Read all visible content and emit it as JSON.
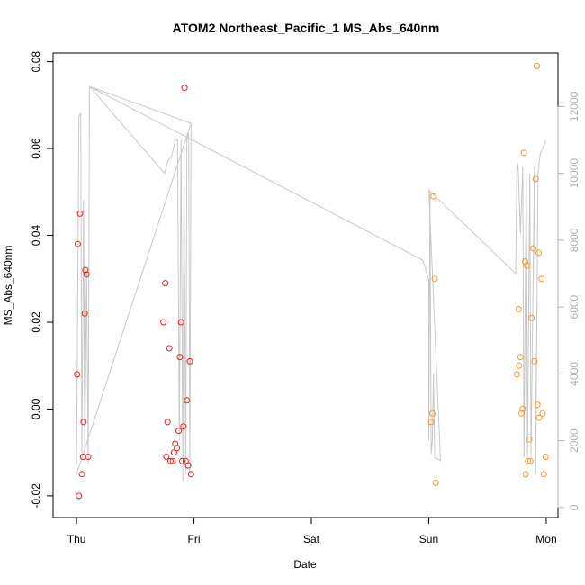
{
  "chart_data": {
    "type": "scatter",
    "title": "ATOM2 Northeast_Pacific_1 MS_Abs_640nm",
    "xlabel": "Date",
    "ylabel": "MS_Abs_640nm",
    "x_unit": "days since Thursday 00:00",
    "xlim": [
      -0.2,
      4.1
    ],
    "ylim": [
      -0.025,
      0.082
    ],
    "x_ticks": [
      {
        "value": 0,
        "label": "Thu"
      },
      {
        "value": 1,
        "label": "Fri"
      },
      {
        "value": 2,
        "label": "Sat"
      },
      {
        "value": 3,
        "label": "Sun"
      },
      {
        "value": 4,
        "label": "Mon"
      }
    ],
    "y_ticks": [
      {
        "value": -0.02,
        "label": "-0.02"
      },
      {
        "value": 0.0,
        "label": "0.00"
      },
      {
        "value": 0.02,
        "label": "0.02"
      },
      {
        "value": 0.04,
        "label": "0.04"
      },
      {
        "value": 0.06,
        "label": "0.06"
      },
      {
        "value": 0.08,
        "label": "0.08"
      }
    ],
    "y2lim": [
      -300,
      13600
    ],
    "y2_ticks": [
      {
        "value": 0,
        "label": "0"
      },
      {
        "value": 2000,
        "label": "2000"
      },
      {
        "value": 4000,
        "label": "4000"
      },
      {
        "value": 6000,
        "label": "6000"
      },
      {
        "value": 8000,
        "label": "8000"
      },
      {
        "value": 10000,
        "label": "10000"
      },
      {
        "value": 12000,
        "label": "12000"
      }
    ],
    "colors": {
      "red": "#ee1c1c",
      "orange": "#f5981f",
      "line": "#c8c8c8",
      "axis": "#000000",
      "axis2": "#b0b0b0"
    },
    "series": [
      {
        "color_key": "red",
        "points": [
          [
            0.005,
            0.008
          ],
          [
            0.01,
            0.038
          ],
          [
            0.02,
            -0.02
          ],
          [
            0.03,
            0.045
          ],
          [
            0.045,
            -0.015
          ],
          [
            0.055,
            -0.011
          ],
          [
            0.06,
            -0.003
          ],
          [
            0.07,
            0.022
          ],
          [
            0.075,
            0.032
          ],
          [
            0.085,
            0.031
          ],
          [
            0.1,
            -0.011
          ],
          [
            0.74,
            0.02
          ],
          [
            0.755,
            0.029
          ],
          [
            0.765,
            -0.011
          ],
          [
            0.775,
            -0.003
          ],
          [
            0.79,
            0.014
          ],
          [
            0.8,
            -0.012
          ],
          [
            0.82,
            -0.012
          ],
          [
            0.83,
            -0.01
          ],
          [
            0.84,
            -0.008
          ],
          [
            0.855,
            -0.009
          ],
          [
            0.87,
            -0.005
          ],
          [
            0.88,
            0.012
          ],
          [
            0.89,
            0.02
          ],
          [
            0.9,
            -0.012
          ],
          [
            0.91,
            -0.004
          ],
          [
            0.92,
            0.074
          ],
          [
            0.93,
            -0.012
          ],
          [
            0.94,
            0.002
          ],
          [
            0.95,
            -0.013
          ],
          [
            0.965,
            0.011
          ],
          [
            0.975,
            -0.015
          ]
        ]
      },
      {
        "color_key": "orange",
        "points": [
          [
            3.02,
            -0.003
          ],
          [
            3.03,
            -0.001
          ],
          [
            3.04,
            0.049
          ],
          [
            3.05,
            0.03
          ],
          [
            3.06,
            -0.017
          ],
          [
            3.75,
            0.008
          ],
          [
            3.765,
            0.023
          ],
          [
            3.77,
            0.01
          ],
          [
            3.78,
            0.012
          ],
          [
            3.79,
            -0.001
          ],
          [
            3.8,
            0.0
          ],
          [
            3.81,
            0.059
          ],
          [
            3.82,
            0.034
          ],
          [
            3.825,
            -0.015
          ],
          [
            3.835,
            0.033
          ],
          [
            3.845,
            -0.012
          ],
          [
            3.855,
            -0.007
          ],
          [
            3.865,
            -0.012
          ],
          [
            3.875,
            0.021
          ],
          [
            3.89,
            0.037
          ],
          [
            3.9,
            0.011
          ],
          [
            3.91,
            0.053
          ],
          [
            3.92,
            0.079
          ],
          [
            3.925,
            0.001
          ],
          [
            3.935,
            0.036
          ],
          [
            3.94,
            -0.002
          ],
          [
            3.96,
            0.03
          ],
          [
            3.97,
            -0.001
          ],
          [
            3.98,
            -0.015
          ],
          [
            3.995,
            -0.011
          ]
        ]
      }
    ],
    "line_series": {
      "axis": "right",
      "points": [
        [
          0.0,
          1300
        ],
        [
          0.02,
          11700
        ],
        [
          0.035,
          11800
        ],
        [
          0.045,
          1500
        ],
        [
          0.06,
          9200
        ],
        [
          0.07,
          1500
        ],
        [
          0.085,
          7000
        ],
        [
          0.1,
          1300
        ],
        [
          0.11,
          12600
        ],
        [
          0.75,
          10000
        ],
        [
          0.78,
          10400
        ],
        [
          0.81,
          10500
        ],
        [
          0.84,
          11000
        ],
        [
          0.86,
          11000
        ],
        [
          0.875,
          2000
        ],
        [
          0.89,
          11000
        ],
        [
          0.905,
          800
        ],
        [
          0.915,
          10000
        ],
        [
          0.93,
          1000
        ],
        [
          0.94,
          11000
        ],
        [
          0.955,
          11200
        ],
        [
          0.965,
          1000
        ],
        [
          0.975,
          11500
        ],
        [
          0.0,
          1000
        ],
        [
          0.975,
          11500
        ],
        [
          0.11,
          12600
        ],
        [
          2.95,
          7400
        ],
        [
          3.0,
          6800
        ],
        [
          3.0,
          2000
        ],
        [
          3.01,
          9500
        ],
        [
          3.02,
          1600
        ],
        [
          3.03,
          2000
        ],
        [
          3.04,
          4000
        ],
        [
          3.05,
          1500
        ],
        [
          3.1,
          1400
        ],
        [
          3.0,
          9500
        ],
        [
          3.74,
          7000
        ],
        [
          3.75,
          10000
        ],
        [
          3.76,
          10300
        ],
        [
          3.78,
          8200
        ],
        [
          3.8,
          10200
        ],
        [
          3.81,
          1500
        ],
        [
          3.83,
          10000
        ],
        [
          3.84,
          1500
        ],
        [
          3.86,
          10000
        ],
        [
          3.87,
          1500
        ],
        [
          3.9,
          10200
        ],
        [
          3.91,
          1000
        ],
        [
          3.93,
          10000
        ],
        [
          3.95,
          10600
        ],
        [
          3.98,
          10800
        ],
        [
          3.995,
          11000
        ]
      ]
    }
  }
}
